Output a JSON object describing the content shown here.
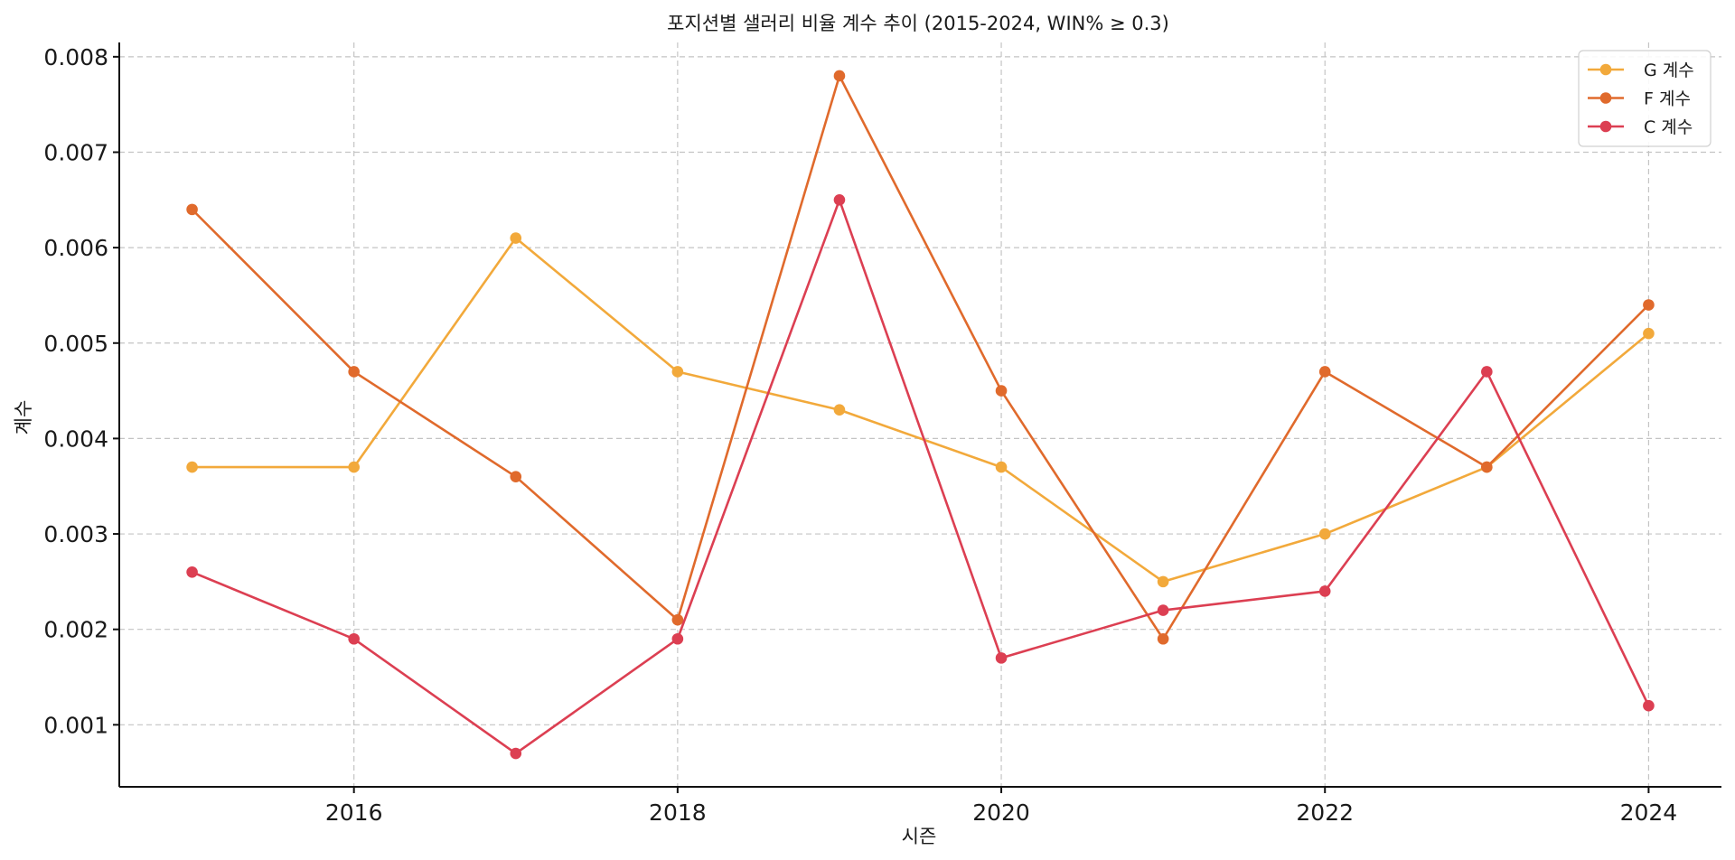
{
  "chart_data": {
    "type": "line",
    "title": "포지션별 샐러리 비율 계수 추이 (2015-2024, WIN% ≥ 0.3)",
    "xlabel": "시즌",
    "ylabel": "계수",
    "x": [
      2015,
      2016,
      2017,
      2018,
      2019,
      2020,
      2021,
      2022,
      2023,
      2024
    ],
    "xlim": [
      2014.55,
      2024.45
    ],
    "ylim": [
      0.00035,
      0.00815
    ],
    "xticks": [
      2016,
      2018,
      2020,
      2022,
      2024
    ],
    "xtick_labels": [
      "2016",
      "2018",
      "2020",
      "2022",
      "2024"
    ],
    "yticks": [
      0.001,
      0.002,
      0.003,
      0.004,
      0.005,
      0.006,
      0.007,
      0.008
    ],
    "ytick_labels": [
      "0.001",
      "0.002",
      "0.003",
      "0.004",
      "0.005",
      "0.006",
      "0.007",
      "0.008"
    ],
    "grid": true,
    "legend_position": "top-right",
    "series": [
      {
        "name": "G 계수",
        "color": "#F2A93B",
        "values": [
          0.0037,
          0.0037,
          0.0061,
          0.0047,
          0.0043,
          0.0037,
          0.0025,
          0.003,
          0.0037,
          0.0051
        ]
      },
      {
        "name": "F 계수",
        "color": "#E06A2C",
        "values": [
          0.0064,
          0.0047,
          0.0036,
          0.0021,
          0.0078,
          0.0045,
          0.0019,
          0.0047,
          0.0037,
          0.0054
        ]
      },
      {
        "name": "C 계수",
        "color": "#DC3F52",
        "values": [
          0.0026,
          0.0019,
          0.0007,
          0.0019,
          0.0065,
          0.0017,
          0.0022,
          0.0024,
          0.0047,
          0.0012
        ]
      }
    ]
  }
}
